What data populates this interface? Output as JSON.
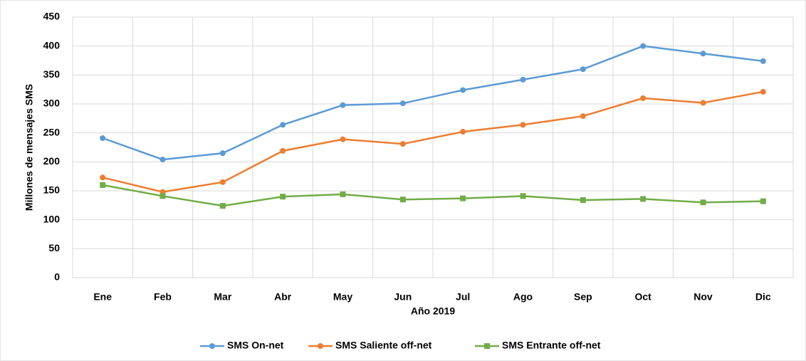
{
  "chart_data": {
    "type": "line",
    "x_label": "Año 2019",
    "y_label": "Millones de mensajes SMS",
    "categories": [
      "Ene",
      "Feb",
      "Mar",
      "Abr",
      "May",
      "Jun",
      "Jul",
      "Ago",
      "Sep",
      "Oct",
      "Nov",
      "Dic"
    ],
    "series": [
      {
        "name": "SMS On-net",
        "color": "#5b9bd5",
        "marker": "circle",
        "values": [
          241,
          204,
          215,
          264,
          298,
          301,
          324,
          342,
          360,
          400,
          387,
          374
        ]
      },
      {
        "name": "SMS Saliente off-net",
        "color": "#ed7d31",
        "marker": "circle",
        "values": [
          173,
          148,
          165,
          219,
          239,
          231,
          252,
          264,
          279,
          310,
          302,
          321
        ]
      },
      {
        "name": "SMS Entrante off-net",
        "color": "#70ad47",
        "marker": "square",
        "values": [
          160,
          141,
          124,
          140,
          144,
          135,
          137,
          141,
          134,
          136,
          130,
          132
        ]
      }
    ],
    "ylim": [
      0,
      450
    ],
    "yticks": [
      0,
      50,
      100,
      150,
      200,
      250,
      300,
      350,
      400,
      450
    ],
    "grid": true,
    "legend": "bottom"
  }
}
